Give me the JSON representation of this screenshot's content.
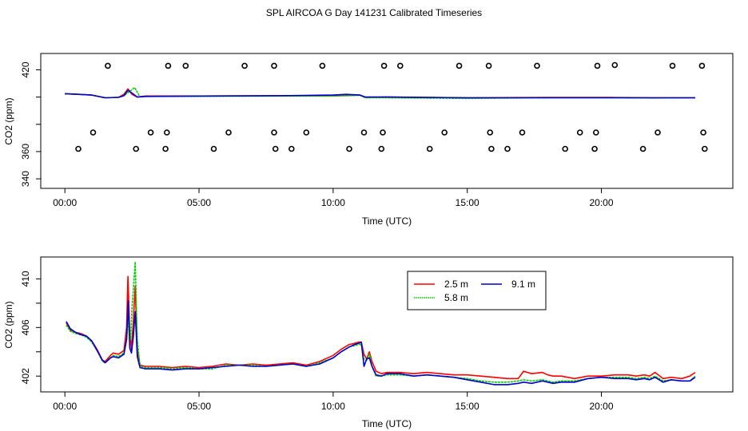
{
  "title": "SPL AIRCOA G  Day 141231  Calibrated Timeseries",
  "colors": {
    "red": "#ff0000",
    "green": "#00cc00",
    "blue": "#0000cc",
    "frame": "#000000"
  },
  "chart_data": [
    {
      "type": "line",
      "name": "top-panel",
      "xlabel": "Time (UTC)",
      "ylabel": "CO2 (ppm)",
      "xlim": [
        -0.9,
        24.9
      ],
      "ylim": [
        333,
        432
      ],
      "xticks": [
        0,
        5,
        10,
        15,
        20
      ],
      "xtick_labels": [
        "00:00",
        "05:00",
        "10:00",
        "15:00",
        "20:00"
      ],
      "yticks": [
        340,
        360,
        380,
        400,
        420
      ],
      "ytick_labels": [
        "340",
        "360",
        "420"
      ],
      "series": [
        {
          "name": "2.5 m",
          "color": "#ff0000",
          "x": [
            0,
            0.5,
            1,
            1.5,
            2,
            2.2,
            2.35,
            2.5,
            2.7,
            3,
            5,
            8,
            10,
            10.5,
            11,
            11.2,
            12,
            15,
            18,
            20,
            22,
            23.5
          ],
          "y": [
            402.5,
            402,
            401.5,
            399.5,
            399.8,
            402,
            406,
            402,
            400,
            400.8,
            400.8,
            401,
            401,
            401.2,
            401.5,
            399.8,
            400,
            399.5,
            399.8,
            399.8,
            399.5,
            399.5
          ]
        },
        {
          "name": "5.8 m",
          "color": "#00cc00",
          "x": [
            0,
            0.5,
            1,
            1.5,
            2,
            2.2,
            2.4,
            2.6,
            2.8,
            3,
            5,
            8,
            10,
            10.5,
            11,
            11.2,
            12,
            15,
            18,
            20,
            22,
            23.5
          ],
          "y": [
            402.5,
            402,
            401.5,
            399.5,
            399.8,
            401,
            404,
            407,
            400,
            400.5,
            400.5,
            400.8,
            400.8,
            401,
            401.3,
            399.5,
            399.5,
            399,
            399.5,
            399.5,
            399.3,
            399.5
          ]
        },
        {
          "name": "9.1 m",
          "color": "#0000cc",
          "x": [
            0,
            0.5,
            1,
            1.5,
            2,
            2.2,
            2.35,
            2.5,
            2.7,
            3,
            5,
            8,
            10,
            10.5,
            11,
            11.2,
            12,
            15,
            18,
            20,
            22,
            23.5
          ],
          "y": [
            402.5,
            402,
            401.5,
            399.5,
            399.8,
            401,
            405,
            403,
            400,
            400.5,
            400.8,
            401,
            401.5,
            402,
            401.5,
            400,
            400,
            399.5,
            399.5,
            399.5,
            399.5,
            399.5
          ]
        }
      ],
      "markers": {
        "symbol": "open-circle",
        "x": [
          0.5,
          1.05,
          1.6,
          2.65,
          3.2,
          3.75,
          3.8,
          3.85,
          4.5,
          5.55,
          6.1,
          6.7,
          7.8,
          7.8,
          7.85,
          8.45,
          9.0,
          9.6,
          10.6,
          11.15,
          11.8,
          11.85,
          11.9,
          12.5,
          13.6,
          14.15,
          14.7,
          15.8,
          15.85,
          15.9,
          16.5,
          17.05,
          17.6,
          18.65,
          19.2,
          19.75,
          19.8,
          19.85,
          20.5,
          21.55,
          22.1,
          22.65,
          23.75,
          23.8,
          23.85
        ],
        "y": [
          362,
          374,
          423,
          362,
          374,
          362,
          374,
          423,
          423,
          362,
          374,
          423,
          374,
          423,
          362,
          362,
          374,
          423,
          362,
          374,
          362,
          374,
          423,
          423,
          362,
          374,
          423,
          423,
          374,
          362,
          362,
          374,
          423,
          362,
          374,
          362,
          374,
          423,
          423.5,
          362,
          374,
          423,
          423,
          374,
          362
        ]
      }
    },
    {
      "type": "line",
      "name": "bottom-panel",
      "xlabel": "Time (UTC)",
      "ylabel": "CO2 (ppm)",
      "xlim": [
        -0.9,
        24.9
      ],
      "ylim": [
        400.7,
        411.8
      ],
      "xticks": [
        0,
        5,
        10,
        15,
        20
      ],
      "xtick_labels": [
        "00:00",
        "05:00",
        "10:00",
        "15:00",
        "20:00"
      ],
      "yticks": [
        402,
        404,
        406,
        408,
        410
      ],
      "ytick_labels": [
        "402",
        "406",
        "410"
      ],
      "legend": {
        "position": "top-center",
        "entries": [
          "2.5 m",
          "9.1 m",
          "5.8 m"
        ]
      },
      "series": [
        {
          "name": "2.5 m",
          "color": "#ff0000",
          "x": [
            0.05,
            0.2,
            0.4,
            0.6,
            0.8,
            1.0,
            1.2,
            1.4,
            1.5,
            1.7,
            1.8,
            2.0,
            2.2,
            2.3,
            2.35,
            2.42,
            2.48,
            2.55,
            2.62,
            2.7,
            2.8,
            3.0,
            3.5,
            4.0,
            4.5,
            5.0,
            5.5,
            6.0,
            6.5,
            7.0,
            7.5,
            8.0,
            8.5,
            9.0,
            9.5,
            10.0,
            10.3,
            10.6,
            10.8,
            10.95,
            11.05,
            11.15,
            11.25,
            11.35,
            11.45,
            11.6,
            11.8,
            12.0,
            12.5,
            13.0,
            13.5,
            14.0,
            14.5,
            15.0,
            15.5,
            16.0,
            16.5,
            16.9,
            17.1,
            17.4,
            17.8,
            18.0,
            18.2,
            18.5,
            19.0,
            19.5,
            20.0,
            20.5,
            21.0,
            21.3,
            21.6,
            21.8,
            22.0,
            22.3,
            22.6,
            23.0,
            23.3,
            23.5
          ],
          "y": [
            406.4,
            405.8,
            405.6,
            405.5,
            405.3,
            404.9,
            404.2,
            403.3,
            403.2,
            403.7,
            403.9,
            403.8,
            404.1,
            406,
            410.2,
            405.6,
            404.2,
            406.5,
            409.4,
            404.2,
            402.9,
            402.8,
            402.8,
            402.7,
            402.8,
            402.7,
            402.8,
            403.0,
            402.9,
            403.0,
            402.9,
            403.0,
            403.1,
            402.9,
            403.2,
            403.7,
            404.2,
            404.6,
            404.7,
            404.8,
            404.8,
            403.8,
            403.4,
            404.0,
            403.2,
            402.4,
            402.2,
            402.3,
            402.3,
            402.2,
            402.3,
            402.2,
            402.1,
            402.1,
            402.0,
            401.9,
            401.8,
            401.8,
            402.4,
            402.2,
            402.3,
            402.1,
            402.0,
            402.0,
            401.8,
            402.0,
            402.0,
            402.1,
            402.1,
            402.0,
            402.1,
            402.0,
            402.3,
            401.8,
            401.9,
            401.8,
            402.0,
            402.3
          ]
        },
        {
          "name": "5.8 m",
          "color": "#00cc00",
          "x": [
            0.05,
            0.2,
            0.4,
            0.6,
            0.8,
            1.0,
            1.2,
            1.4,
            1.5,
            1.7,
            1.8,
            2.0,
            2.2,
            2.3,
            2.38,
            2.45,
            2.5,
            2.55,
            2.62,
            2.7,
            2.8,
            3.0,
            3.5,
            4.0,
            4.5,
            5.0,
            5.5,
            6.0,
            6.5,
            7.0,
            7.5,
            8.0,
            8.5,
            9.0,
            9.5,
            10.0,
            10.3,
            10.6,
            10.8,
            10.95,
            11.05,
            11.15,
            11.25,
            11.35,
            11.45,
            11.6,
            11.8,
            12.0,
            12.5,
            13.0,
            13.5,
            14.0,
            14.5,
            15.0,
            15.5,
            16.0,
            16.5,
            16.9,
            17.1,
            17.4,
            17.8,
            18.0,
            18.2,
            18.5,
            19.0,
            19.5,
            20.0,
            20.5,
            21.0,
            21.3,
            21.6,
            21.8,
            22.0,
            22.3,
            22.6,
            23.0,
            23.3,
            23.5
          ],
          "y": [
            406.2,
            405.7,
            405.5,
            405.4,
            405.2,
            404.8,
            404.1,
            403.2,
            403.1,
            403.5,
            403.7,
            403.6,
            403.9,
            405.0,
            407.0,
            405.0,
            407.5,
            409.0,
            411.4,
            405.0,
            402.8,
            402.7,
            402.7,
            402.6,
            402.7,
            402.6,
            402.6,
            402.9,
            402.9,
            402.9,
            402.8,
            402.9,
            403.0,
            402.8,
            403.1,
            403.5,
            404.0,
            404.4,
            404.5,
            404.6,
            404.6,
            403.4,
            403.3,
            403.8,
            402.8,
            402.0,
            402.0,
            402.1,
            402.1,
            402.0,
            402.1,
            402.0,
            401.9,
            401.8,
            401.6,
            401.5,
            401.5,
            401.6,
            401.7,
            401.6,
            401.7,
            401.6,
            401.5,
            401.6,
            401.6,
            401.8,
            401.9,
            401.9,
            401.9,
            401.8,
            401.9,
            401.8,
            402.0,
            401.6,
            401.7,
            401.6,
            401.6,
            402.0
          ]
        },
        {
          "name": "9.1 m",
          "color": "#0000cc",
          "x": [
            0.05,
            0.2,
            0.4,
            0.6,
            0.8,
            1.0,
            1.2,
            1.4,
            1.5,
            1.7,
            1.8,
            2.0,
            2.2,
            2.3,
            2.36,
            2.42,
            2.48,
            2.55,
            2.62,
            2.7,
            2.8,
            3.0,
            3.5,
            4.0,
            4.5,
            5.0,
            5.5,
            6.0,
            6.5,
            7.0,
            7.5,
            8.0,
            8.5,
            9.0,
            9.5,
            10.0,
            10.3,
            10.6,
            10.8,
            10.95,
            11.05,
            11.15,
            11.25,
            11.35,
            11.45,
            11.6,
            11.8,
            12.0,
            12.5,
            13.0,
            13.5,
            14.0,
            14.5,
            15.0,
            15.5,
            16.0,
            16.5,
            16.9,
            17.1,
            17.4,
            17.8,
            18.0,
            18.2,
            18.5,
            19.0,
            19.5,
            20.0,
            20.5,
            21.0,
            21.3,
            21.6,
            21.8,
            22.0,
            22.3,
            22.6,
            23.0,
            23.3,
            23.5
          ],
          "y": [
            406.5,
            405.9,
            405.6,
            405.4,
            405.3,
            404.9,
            404.1,
            403.3,
            403.1,
            403.5,
            403.6,
            403.5,
            403.8,
            405.0,
            408.2,
            404.3,
            403.9,
            405.2,
            407.3,
            403.6,
            402.7,
            402.6,
            402.6,
            402.5,
            402.6,
            402.6,
            402.7,
            402.8,
            402.9,
            402.8,
            402.8,
            402.9,
            403.0,
            402.8,
            403.0,
            403.5,
            404.0,
            404.4,
            404.6,
            404.7,
            404.8,
            402.8,
            403.4,
            403.5,
            402.8,
            402.1,
            402.0,
            402.2,
            402.2,
            402.0,
            402.1,
            402.0,
            401.9,
            401.7,
            401.5,
            401.3,
            401.3,
            401.4,
            401.5,
            401.4,
            401.6,
            401.5,
            401.4,
            401.5,
            401.5,
            401.8,
            401.9,
            401.8,
            401.8,
            401.7,
            401.8,
            401.7,
            401.9,
            401.5,
            401.7,
            401.6,
            401.6,
            401.9
          ]
        }
      ]
    }
  ]
}
